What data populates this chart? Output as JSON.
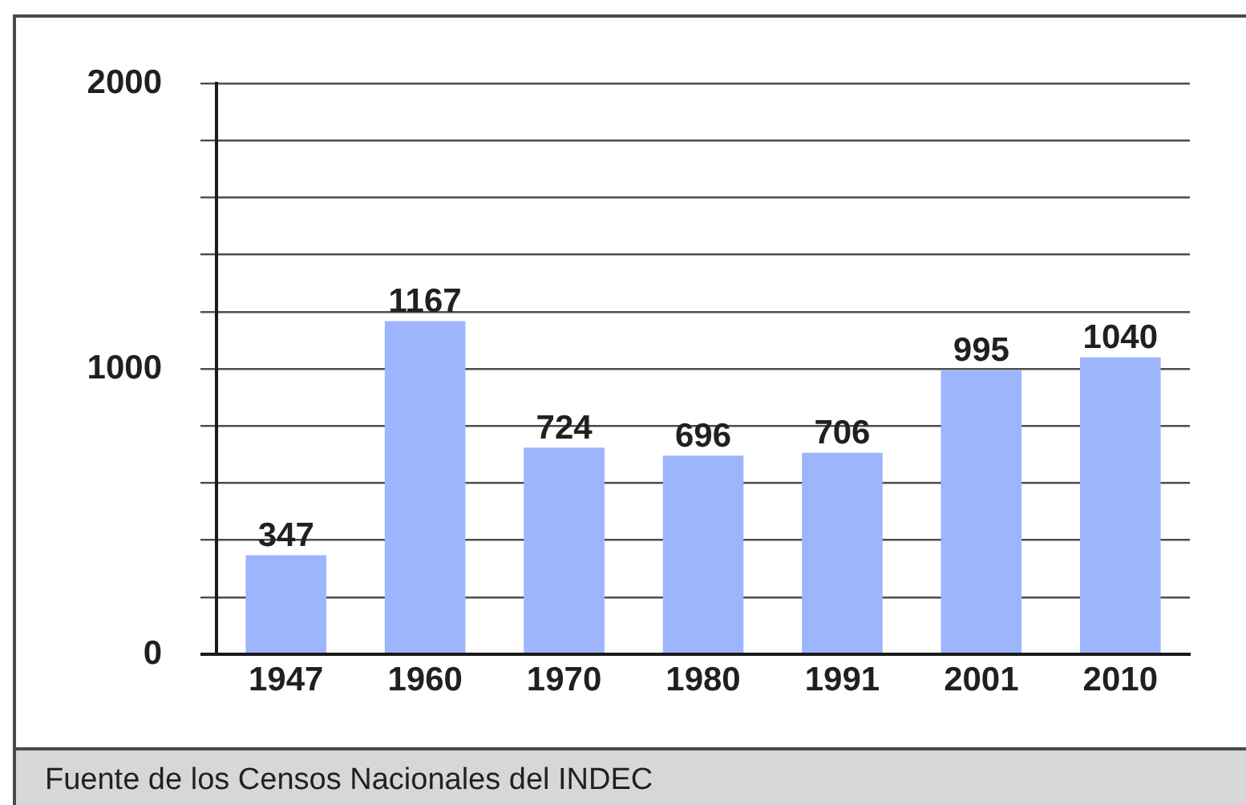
{
  "chart_data": {
    "type": "bar",
    "categories": [
      "1947",
      "1960",
      "1970",
      "1980",
      "1991",
      "2001",
      "2010"
    ],
    "values": [
      347,
      1167,
      724,
      696,
      706,
      995,
      1040
    ],
    "color": "#9db5fd",
    "ylim": [
      0,
      2000
    ],
    "yticks": [
      0,
      {
        "value": 200,
        "label": null
      },
      {
        "value": 400,
        "label": null
      },
      {
        "value": 600,
        "label": null
      },
      {
        "value": 800,
        "label": null
      },
      1000,
      {
        "value": 1200,
        "label": null
      },
      {
        "value": 1400,
        "label": null
      },
      {
        "value": 1600,
        "label": null
      },
      {
        "value": 1800,
        "label": null
      },
      2000
    ],
    "grid": "y",
    "data_labels": true,
    "annotations": [
      "Fuente de los Censos Nacionales del INDEC"
    ]
  }
}
